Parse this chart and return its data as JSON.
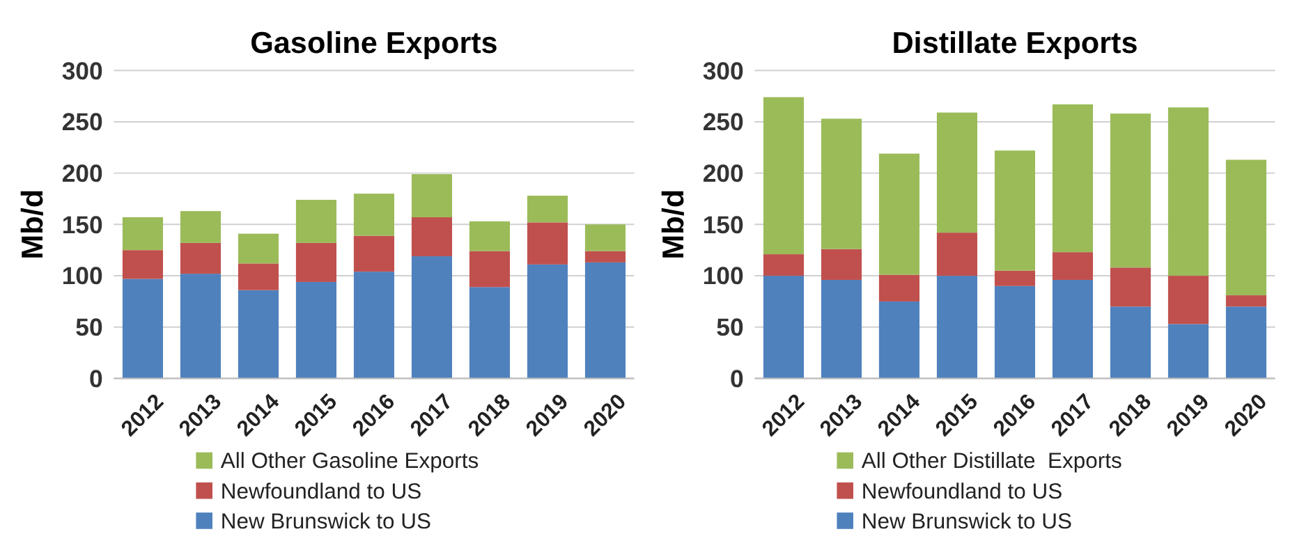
{
  "chart_data": [
    {
      "type": "bar",
      "stacked": true,
      "title": "Gasoline Exports",
      "ylabel": "Mb/d",
      "categories": [
        "2012",
        "2013",
        "2014",
        "2015",
        "2016",
        "2017",
        "2018",
        "2019",
        "2020"
      ],
      "series": [
        {
          "name": "New Brunswick to US",
          "color": "#4f81bd",
          "values": [
            97,
            102,
            86,
            94,
            104,
            119,
            89,
            111,
            113
          ]
        },
        {
          "name": "Newfoundland to US",
          "color": "#c0504d",
          "values": [
            28,
            30,
            26,
            38,
            35,
            38,
            35,
            41,
            11
          ]
        },
        {
          "name": "All Other Gasoline Exports",
          "color": "#9bbb59",
          "values": [
            32,
            31,
            29,
            42,
            41,
            42,
            29,
            26,
            26
          ]
        }
      ],
      "ylim": [
        0,
        300
      ],
      "yticks": [
        0,
        50,
        100,
        150,
        200,
        250,
        300
      ],
      "grid": "y",
      "legend": "bottom"
    },
    {
      "type": "bar",
      "stacked": true,
      "title": "Distillate Exports",
      "ylabel": "Mb/d",
      "categories": [
        "2012",
        "2013",
        "2014",
        "2015",
        "2016",
        "2017",
        "2018",
        "2019",
        "2020"
      ],
      "series": [
        {
          "name": "New Brunswick to US",
          "color": "#4f81bd",
          "values": [
            100,
            96,
            75,
            100,
            90,
            96,
            70,
            53,
            70
          ]
        },
        {
          "name": "Newfoundland to US",
          "color": "#c0504d",
          "values": [
            21,
            30,
            26,
            42,
            15,
            27,
            38,
            47,
            11
          ]
        },
        {
          "name": "All Other Distillate  Exports",
          "color": "#9bbb59",
          "values": [
            153,
            127,
            118,
            117,
            117,
            144,
            150,
            164,
            132
          ]
        }
      ],
      "ylim": [
        0,
        300
      ],
      "yticks": [
        0,
        50,
        100,
        150,
        200,
        250,
        300
      ],
      "grid": "y",
      "legend": "bottom"
    }
  ]
}
